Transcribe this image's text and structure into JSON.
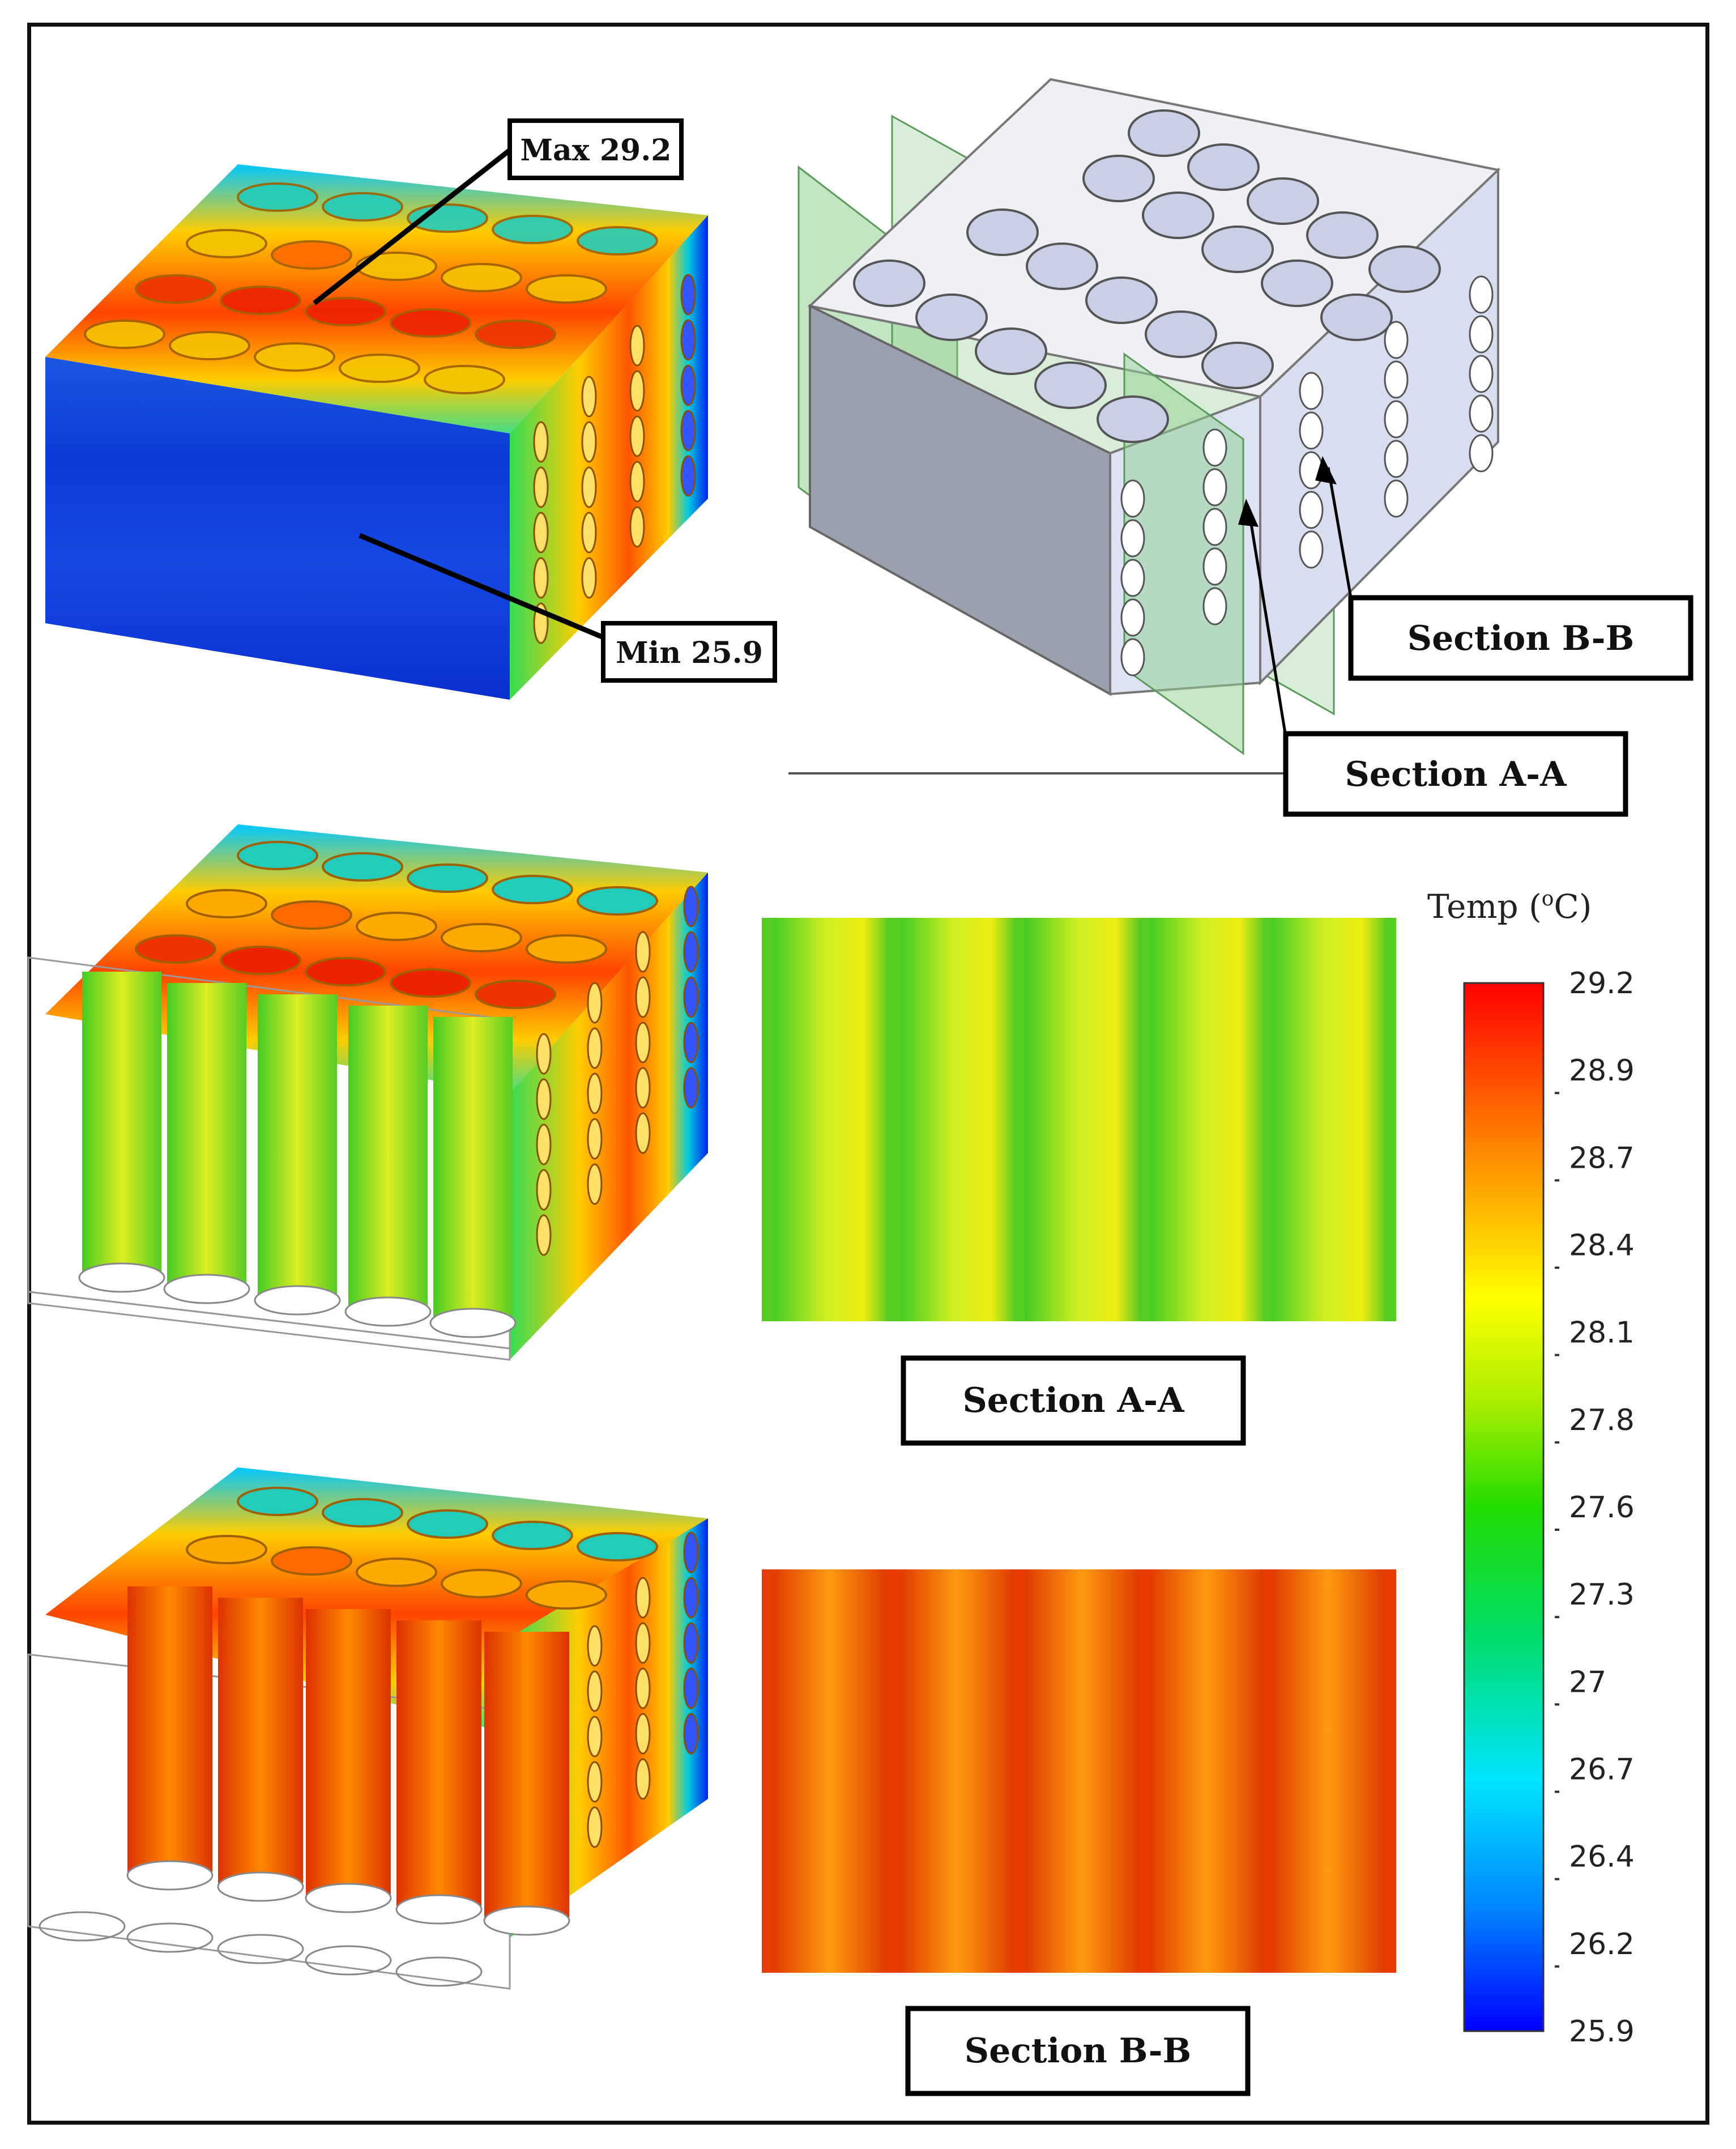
{
  "callouts": {
    "max": "Max 29.2",
    "min": "Min 25.9"
  },
  "sections": {
    "a_top": "Section A-A",
    "b_top": "Section B-B",
    "a_bottom": "Section A-A",
    "b_bottom": "Section B-B"
  },
  "colorbar": {
    "title": "Temp (",
    "title_sup": "o",
    "title_unit": "C)",
    "ticks": [
      "29.2",
      "28.9",
      "28.7",
      "28.4",
      "28.1",
      "27.8",
      "27.6",
      "27.3",
      "27",
      "26.7",
      "26.4",
      "26.2",
      "25.9"
    ],
    "min": 25.9,
    "max": 29.2,
    "colormap": [
      "#0000ff",
      "#0088ff",
      "#00e5ff",
      "#00dd66",
      "#22dd00",
      "#aaee00",
      "#ffff00",
      "#ffaa00",
      "#ff5500",
      "#ff0000"
    ]
  }
}
